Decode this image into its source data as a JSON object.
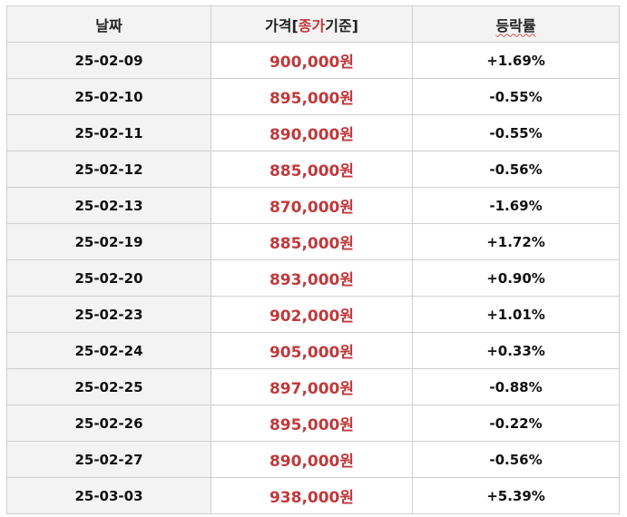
{
  "table": {
    "headers": {
      "date": "날짜",
      "price_prefix": "가격[",
      "price_accent": "종가",
      "price_suffix": "기준]",
      "change": "등락률"
    },
    "rows": [
      {
        "date": "25-02-09",
        "price": "900,000원",
        "change": "+1.69%"
      },
      {
        "date": "25-02-10",
        "price": "895,000원",
        "change": "-0.55%"
      },
      {
        "date": "25-02-11",
        "price": "890,000원",
        "change": "-0.55%"
      },
      {
        "date": "25-02-12",
        "price": "885,000원",
        "change": "-0.56%"
      },
      {
        "date": "25-02-13",
        "price": "870,000원",
        "change": "-1.69%"
      },
      {
        "date": "25-02-19",
        "price": "885,000원",
        "change": "+1.72%"
      },
      {
        "date": "25-02-20",
        "price": "893,000원",
        "change": "+0.90%"
      },
      {
        "date": "25-02-23",
        "price": "902,000원",
        "change": "+1.01%"
      },
      {
        "date": "25-02-24",
        "price": "905,000원",
        "change": "+0.33%"
      },
      {
        "date": "25-02-25",
        "price": "897,000원",
        "change": "-0.88%"
      },
      {
        "date": "25-02-26",
        "price": "895,000원",
        "change": "-0.22%"
      },
      {
        "date": "25-02-27",
        "price": "890,000원",
        "change": "-0.56%"
      },
      {
        "date": "25-03-03",
        "price": "938,000원",
        "change": "+5.39%"
      }
    ]
  },
  "colors": {
    "accent": "#c0393b",
    "header_bg": "#f3f3f3",
    "border": "#cfcfcf"
  }
}
